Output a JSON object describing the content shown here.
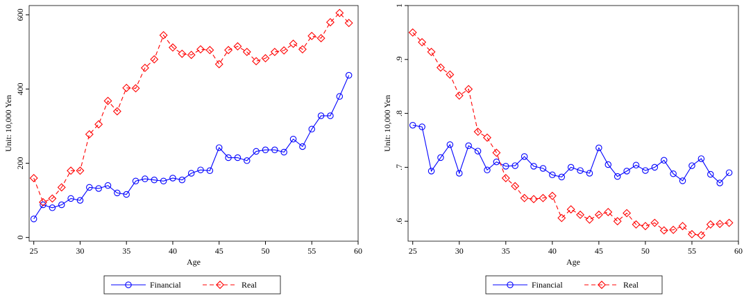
{
  "chart_data": [
    {
      "type": "line",
      "xlabel": "Age",
      "ylabel": "Unit: 10,000 Yen",
      "x": [
        25,
        26,
        27,
        28,
        29,
        30,
        31,
        32,
        33,
        34,
        35,
        36,
        37,
        38,
        39,
        40,
        41,
        42,
        43,
        44,
        45,
        46,
        47,
        48,
        49,
        50,
        51,
        52,
        53,
        54,
        55,
        56,
        57,
        58,
        59
      ],
      "xlim": [
        24.5,
        60
      ],
      "ylim": [
        -10,
        625
      ],
      "xticks": [
        25,
        30,
        35,
        40,
        45,
        50,
        55,
        60
      ],
      "yticks": [
        0,
        200,
        400,
        600
      ],
      "ytick_labels": [
        "0",
        "200",
        "400",
        "600"
      ],
      "legend_position": "bottom-center",
      "series": [
        {
          "name": "Financial",
          "color": "#0000ff",
          "marker": "circle",
          "dash": "solid",
          "values": [
            50,
            88,
            80,
            88,
            105,
            100,
            135,
            132,
            140,
            120,
            116,
            152,
            158,
            155,
            152,
            160,
            155,
            173,
            182,
            180,
            242,
            215,
            215,
            207,
            232,
            236,
            236,
            230,
            265,
            245,
            292,
            328,
            328,
            380,
            437
          ]
        },
        {
          "name": "Real",
          "color": "#ff0000",
          "marker": "diamond",
          "dash": "dashed",
          "values": [
            160,
            95,
            105,
            135,
            180,
            180,
            278,
            305,
            368,
            340,
            403,
            402,
            457,
            480,
            545,
            512,
            495,
            492,
            507,
            505,
            467,
            505,
            515,
            500,
            475,
            483,
            500,
            504,
            522,
            507,
            543,
            537,
            580,
            605,
            578
          ]
        }
      ]
    },
    {
      "type": "line",
      "xlabel": "Age",
      "ylabel": "Unit: 10,000 Yen",
      "x": [
        25,
        26,
        27,
        28,
        29,
        30,
        31,
        32,
        33,
        34,
        35,
        36,
        37,
        38,
        39,
        40,
        41,
        42,
        43,
        44,
        45,
        46,
        47,
        48,
        49,
        50,
        51,
        52,
        53,
        54,
        55,
        56,
        57,
        58,
        59
      ],
      "xlim": [
        24.5,
        60
      ],
      "ylim": [
        0.563,
        1.0
      ],
      "xticks": [
        25,
        30,
        35,
        40,
        45,
        50,
        55,
        60
      ],
      "yticks": [
        0.6,
        0.7,
        0.8,
        0.9,
        1.0
      ],
      "ytick_labels": [
        ".6",
        ".7",
        ".8",
        ".9",
        "1"
      ],
      "legend_position": "bottom-center",
      "series": [
        {
          "name": "Financial",
          "color": "#0000ff",
          "marker": "circle",
          "dash": "solid",
          "values": [
            0.778,
            0.775,
            0.693,
            0.718,
            0.742,
            0.689,
            0.74,
            0.73,
            0.695,
            0.71,
            0.702,
            0.703,
            0.72,
            0.702,
            0.698,
            0.686,
            0.682,
            0.7,
            0.694,
            0.689,
            0.736,
            0.705,
            0.683,
            0.693,
            0.704,
            0.694,
            0.7,
            0.713,
            0.688,
            0.675,
            0.703,
            0.716,
            0.687,
            0.671,
            0.69
          ]
        },
        {
          "name": "Real",
          "color": "#ff0000",
          "marker": "diamond",
          "dash": "dashed",
          "values": [
            0.95,
            0.932,
            0.914,
            0.885,
            0.872,
            0.833,
            0.845,
            0.766,
            0.755,
            0.727,
            0.68,
            0.665,
            0.643,
            0.641,
            0.643,
            0.647,
            0.606,
            0.622,
            0.612,
            0.603,
            0.612,
            0.617,
            0.6,
            0.615,
            0.594,
            0.591,
            0.597,
            0.583,
            0.584,
            0.591,
            0.576,
            0.574,
            0.594,
            0.595,
            0.597
          ]
        }
      ]
    }
  ]
}
